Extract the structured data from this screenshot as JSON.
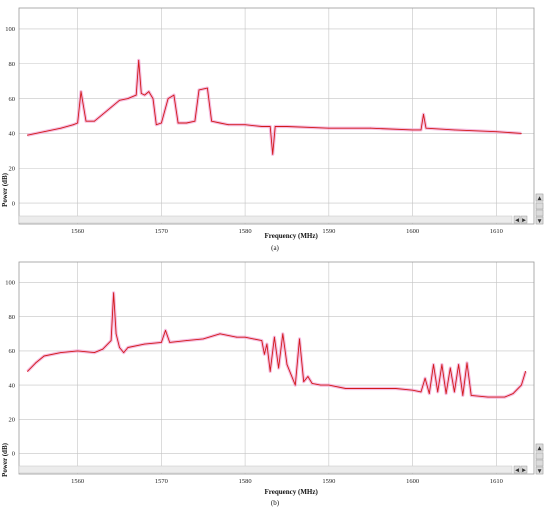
{
  "colors": {
    "trace": "#d21a1a",
    "trace_glow": "#f2a7d6",
    "grid": "#c4c4c4",
    "background": "#ffffff"
  },
  "icons": [
    "scroll-left-icon",
    "scroll-right-icon",
    "scroll-up-icon",
    "scroll-down-icon"
  ],
  "chart_data": [
    {
      "type": "line",
      "caption": "(a)",
      "xlabel": "Frequency (MHz)",
      "ylabel": "Power (dB)",
      "xlim": [
        1553,
        1614.5
      ],
      "ylim": [
        -12,
        112
      ],
      "xticks": [
        1560,
        1570,
        1580,
        1590,
        1600,
        1610
      ],
      "yticks": [
        0,
        20,
        40,
        60,
        80,
        100
      ],
      "grid": true,
      "series": [
        {
          "x": [
            1554,
            1556,
            1558,
            1559.5,
            1560,
            1560.4,
            1561,
            1562,
            1563,
            1564,
            1565,
            1566,
            1567,
            1567.3,
            1567.6,
            1568,
            1568.5,
            1569,
            1569.4,
            1570,
            1570.8,
            1571.5,
            1572,
            1573,
            1574,
            1574.5,
            1575.5,
            1576,
            1577,
            1578,
            1580,
            1582,
            1583,
            1583.3,
            1583.6,
            1585,
            1590,
            1595,
            1600,
            1601,
            1601.3,
            1601.6,
            1605,
            1610,
            1613
          ],
          "y": [
            39,
            41,
            43,
            45,
            46,
            64,
            47,
            47,
            51,
            55,
            59,
            60,
            62,
            82,
            63,
            62,
            64,
            60,
            45,
            46,
            60,
            62,
            46,
            46,
            47,
            65,
            66,
            47,
            46,
            45,
            45,
            44,
            44,
            28,
            44,
            44,
            43,
            43,
            42,
            42,
            51,
            43,
            42,
            41,
            40
          ]
        }
      ]
    },
    {
      "type": "line",
      "caption": "(b)",
      "xlabel": "Frequency (MHz)",
      "ylabel": "Power (dB)",
      "xlim": [
        1553,
        1614.5
      ],
      "ylim": [
        -12,
        112
      ],
      "xticks": [
        1560,
        1570,
        1580,
        1590,
        1600,
        1610
      ],
      "yticks": [
        0,
        20,
        40,
        60,
        80,
        100
      ],
      "grid": true,
      "series": [
        {
          "x": [
            1554,
            1555,
            1556,
            1558,
            1560,
            1562,
            1563,
            1564,
            1564.3,
            1564.6,
            1565,
            1565.5,
            1566,
            1568,
            1570,
            1570.5,
            1571,
            1573,
            1575,
            1577,
            1579,
            1580,
            1581,
            1582,
            1582.3,
            1582.6,
            1583,
            1583.5,
            1584,
            1584.5,
            1585,
            1586,
            1586.5,
            1587,
            1587.5,
            1588,
            1589,
            1590,
            1592,
            1595,
            1598,
            1600,
            1601,
            1601.5,
            1602,
            1602.5,
            1603,
            1603.5,
            1604,
            1604.5,
            1605,
            1605.5,
            1606,
            1606.5,
            1607,
            1609,
            1611,
            1612,
            1613,
            1613.5
          ],
          "y": [
            48,
            53,
            57,
            59,
            60,
            59,
            61,
            66,
            94,
            70,
            62,
            59,
            62,
            64,
            65,
            72,
            65,
            66,
            67,
            70,
            68,
            68,
            67,
            66,
            58,
            64,
            48,
            68,
            50,
            70,
            52,
            40,
            67,
            42,
            45,
            41,
            40,
            40,
            38,
            38,
            38,
            37,
            36,
            44,
            35,
            52,
            36,
            52,
            35,
            50,
            36,
            52,
            34,
            53,
            34,
            33,
            33,
            35,
            40,
            48
          ]
        }
      ]
    }
  ]
}
